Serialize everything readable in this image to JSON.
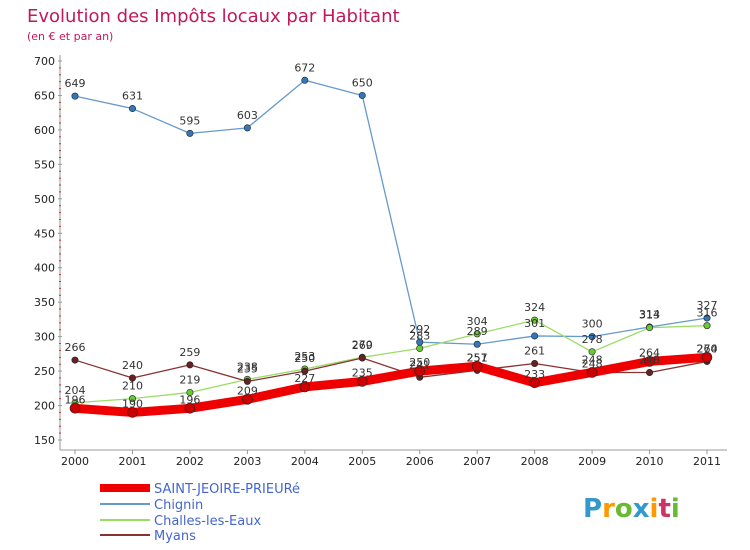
{
  "chart_data": {
    "type": "line",
    "title": "Evolution des Impôts locaux par Habitant",
    "subtitle": "(en € et par an)",
    "categories": [
      "2000",
      "2001",
      "2002",
      "2003",
      "2004",
      "2005",
      "2006",
      "2007",
      "2008",
      "2009",
      "2010",
      "2011"
    ],
    "y_ticks": [
      150,
      200,
      250,
      300,
      350,
      400,
      450,
      500,
      550,
      600,
      650,
      700
    ],
    "ylim": [
      150,
      700
    ],
    "series": [
      {
        "name": "SAINT-JEOIRE-PRIEURé",
        "color": "#ee0000",
        "dot": "#cc0000",
        "values": [
          196,
          190,
          196,
          209,
          227,
          235,
          250,
          257,
          233,
          248,
          264,
          270
        ],
        "labels": [
          "196",
          "190",
          "196",
          "209",
          "227",
          "235",
          "250",
          "257",
          "233",
          "248",
          "264",
          "270"
        ]
      },
      {
        "name": "Chignin",
        "color": "#6699cc",
        "dot": "#3377bb",
        "values": [
          649,
          631,
          595,
          603,
          672,
          650,
          292,
          289,
          301,
          300,
          314,
          327
        ],
        "labels": [
          "649",
          "631",
          "595",
          "603",
          "672",
          "650",
          "292",
          "289",
          "301",
          "300",
          "314",
          "327"
        ]
      },
      {
        "name": "Challes-les-Eaux",
        "color": "#99dd66",
        "dot": "#66cc33",
        "values": [
          204,
          210,
          219,
          238,
          253,
          270,
          283,
          304,
          324,
          278,
          313,
          316
        ],
        "labels": [
          "204",
          "210",
          "219",
          "238",
          "253",
          "270",
          "283",
          "304",
          "324",
          "278",
          "313",
          "316"
        ]
      },
      {
        "name": "Myans",
        "color": "#883333",
        "dot": "#662222",
        "values": [
          266,
          240,
          259,
          235,
          250,
          269,
          241,
          251,
          261,
          248,
          248,
          264
        ],
        "labels": [
          "266",
          "240",
          "259",
          "235",
          "250",
          "269",
          "241",
          "251",
          "261",
          "248",
          "248",
          "264"
        ]
      }
    ],
    "legend_position": "bottom-left",
    "grid": false
  },
  "logo": {
    "text": "Proxiti",
    "letters": [
      "P",
      "r",
      "o",
      "x",
      "i",
      "t",
      "i"
    ],
    "colors": [
      "#3399cc",
      "#ff9900",
      "#66bb33",
      "#3399cc",
      "#ff9900",
      "#cc3366",
      "#66bb33"
    ]
  }
}
